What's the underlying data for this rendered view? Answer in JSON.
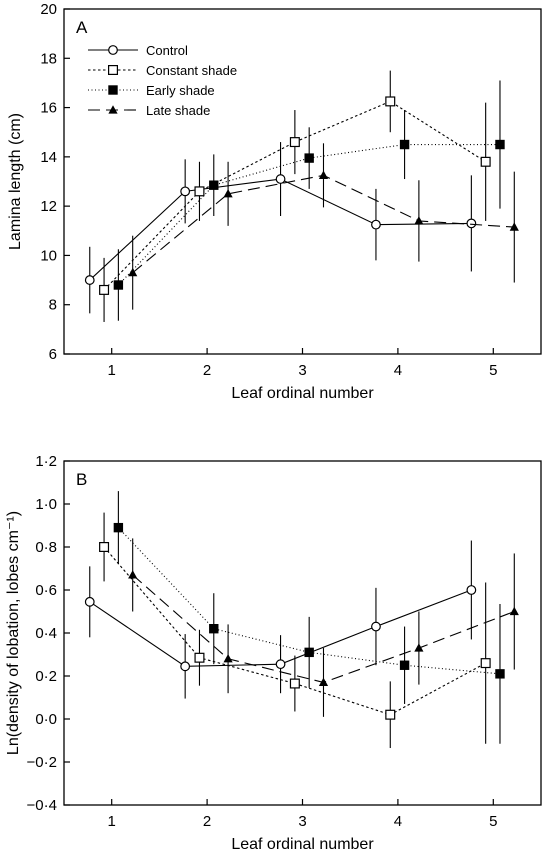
{
  "chart_data": [
    {
      "type": "line",
      "panel_label": "A",
      "xlabel": "Leaf ordinal number",
      "ylabel": "Lamina length (cm)",
      "xlim": [
        0.5,
        5.5
      ],
      "ylim": [
        6,
        20
      ],
      "xticks": [
        1,
        2,
        3,
        4,
        5
      ],
      "xtick_labels": [
        "1",
        "2",
        "3",
        "4",
        "5"
      ],
      "yticks": [
        6,
        8,
        10,
        12,
        14,
        16,
        18,
        20
      ],
      "ytick_labels": [
        "6",
        "8",
        "10",
        "12",
        "14",
        "16",
        "18",
        "20"
      ],
      "legend_position": "top-left",
      "series": [
        {
          "name": "Control",
          "x": [
            0.77,
            1.77,
            2.77,
            3.77,
            4.77
          ],
          "y": [
            9.0,
            12.6,
            13.1,
            11.25,
            11.3
          ],
          "err": [
            1.35,
            1.3,
            1.5,
            1.45,
            1.95
          ],
          "marker": "circle-open",
          "line": "solid"
        },
        {
          "name": "Constant shade",
          "x": [
            0.92,
            1.92,
            2.92,
            3.92,
            4.92
          ],
          "y": [
            8.6,
            12.6,
            14.6,
            16.25,
            13.8
          ],
          "err": [
            1.3,
            1.2,
            1.3,
            1.25,
            2.4
          ],
          "marker": "square-open",
          "line": "short-dash"
        },
        {
          "name": "Early shade",
          "x": [
            1.07,
            2.07,
            3.07,
            4.07,
            5.07
          ],
          "y": [
            8.8,
            12.85,
            13.95,
            14.5,
            14.5
          ],
          "err": [
            1.45,
            1.25,
            1.25,
            1.4,
            2.6
          ],
          "marker": "square-filled",
          "line": "dotted"
        },
        {
          "name": "Late shade",
          "x": [
            1.22,
            2.22,
            3.22,
            4.22,
            5.22
          ],
          "y": [
            9.3,
            12.5,
            13.25,
            11.4,
            11.15
          ],
          "err": [
            1.5,
            1.3,
            1.3,
            1.65,
            2.25
          ],
          "marker": "triangle-filled",
          "line": "long-dash"
        }
      ]
    },
    {
      "type": "line",
      "panel_label": "B",
      "xlabel": "Leaf ordinal number",
      "ylabel": "Ln(density of lobation, lobes cm⁻¹)",
      "xlim": [
        0.5,
        5.5
      ],
      "ylim": [
        -0.4,
        1.2
      ],
      "xticks": [
        1,
        2,
        3,
        4,
        5
      ],
      "xtick_labels": [
        "1",
        "2",
        "3",
        "4",
        "5"
      ],
      "yticks": [
        -0.4,
        -0.2,
        0.0,
        0.2,
        0.4,
        0.6,
        0.8,
        1.0,
        1.2
      ],
      "ytick_labels": [
        "−0·4",
        "−0·2",
        "0·0",
        "0·2",
        "0·4",
        "0·6",
        "0·8",
        "1·0",
        "1·2"
      ],
      "series": [
        {
          "name": "Control",
          "x": [
            0.77,
            1.77,
            2.77,
            3.77,
            4.77
          ],
          "y": [
            0.545,
            0.245,
            0.255,
            0.43,
            0.6
          ],
          "err": [
            0.165,
            0.15,
            0.135,
            0.18,
            0.23
          ],
          "marker": "circle-open",
          "line": "solid"
        },
        {
          "name": "Constant shade",
          "x": [
            0.92,
            1.92,
            2.92,
            3.92,
            4.92
          ],
          "y": [
            0.8,
            0.285,
            0.165,
            0.02,
            0.26
          ],
          "err": [
            0.16,
            0.13,
            0.13,
            0.155,
            0.375
          ],
          "marker": "square-open",
          "line": "short-dash"
        },
        {
          "name": "Early shade",
          "x": [
            1.07,
            2.07,
            3.07,
            4.07,
            5.07
          ],
          "y": [
            0.89,
            0.42,
            0.31,
            0.25,
            0.21
          ],
          "err": [
            0.17,
            0.165,
            0.165,
            0.18,
            0.325
          ],
          "marker": "square-filled",
          "line": "dotted"
        },
        {
          "name": "Late shade",
          "x": [
            1.22,
            2.22,
            3.22,
            4.22,
            5.22
          ],
          "y": [
            0.67,
            0.28,
            0.17,
            0.33,
            0.5
          ],
          "err": [
            0.17,
            0.16,
            0.16,
            0.17,
            0.27
          ],
          "marker": "triangle-filled",
          "line": "long-dash"
        }
      ]
    }
  ]
}
